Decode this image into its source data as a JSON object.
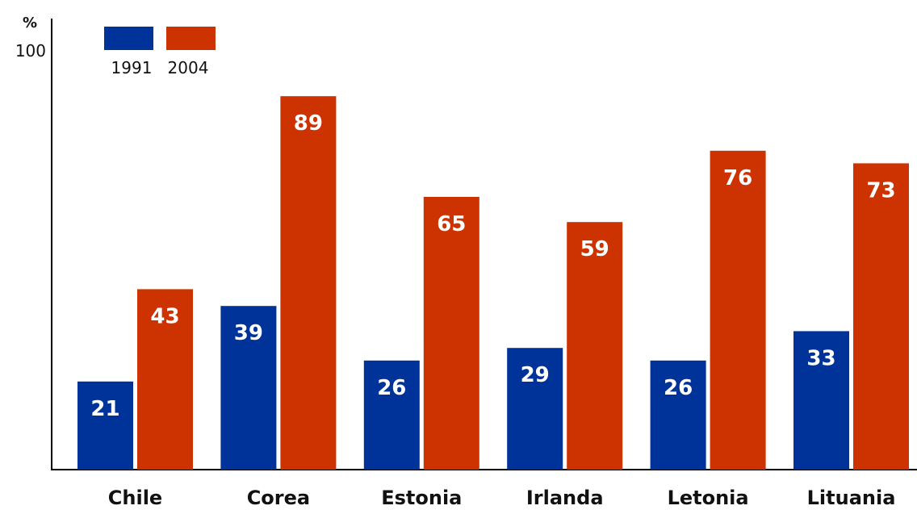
{
  "chart_data": {
    "type": "bar",
    "y_unit": "%",
    "y_tick_labels": [
      "100"
    ],
    "ylim": [
      0,
      100
    ],
    "categories": [
      "Chile",
      "Corea",
      "Estonia",
      "Irlanda",
      "Letonia",
      "Lituania"
    ],
    "series": [
      {
        "name": "1991",
        "color": "#003399",
        "values": [
          21,
          39,
          26,
          29,
          26,
          33
        ]
      },
      {
        "name": "2004",
        "color": "#CC3300",
        "values": [
          43,
          89,
          65,
          59,
          76,
          73
        ]
      }
    ],
    "legend_position": "top-left",
    "grid": false
  }
}
